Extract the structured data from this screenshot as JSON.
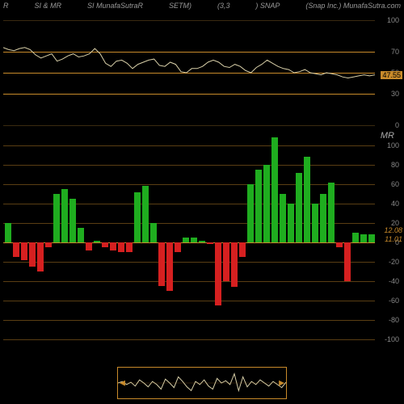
{
  "header": {
    "left1": "R",
    "left2": "SI & MR",
    "left3": "SI MunafaSutraR",
    "left4": "SETM)",
    "center": "(3,3",
    "symbol": ") SNAP",
    "right": "(Snap Inc.) MunafaSutra.com"
  },
  "upper_chart": {
    "ylim": [
      0,
      100
    ],
    "gridlines": [
      0,
      30,
      50,
      70,
      100
    ],
    "grid_colors": {
      "major": "#c88a2a",
      "minor": "#3a2a10"
    },
    "current_value": 47.55,
    "line_color": "#d8cfa8",
    "line_width": 1,
    "points": [
      74,
      72,
      71,
      73,
      74,
      72,
      67,
      64,
      66,
      68,
      61,
      63,
      66,
      68,
      65,
      66,
      68,
      73,
      68,
      59,
      56,
      61,
      62,
      59,
      54,
      58,
      60,
      62,
      63,
      57,
      56,
      60,
      58,
      51,
      50,
      54,
      54,
      56,
      60,
      62,
      60,
      56,
      55,
      58,
      56,
      52,
      50,
      55,
      58,
      62,
      59,
      56,
      54,
      53,
      50,
      51,
      53,
      50,
      49,
      48,
      50,
      49,
      48,
      46,
      45,
      46,
      47,
      48,
      47,
      48
    ]
  },
  "lower_chart": {
    "title": "MR",
    "ylim": [
      -100,
      100
    ],
    "gridlines": [
      -100,
      -80,
      -60,
      -40,
      -20,
      0,
      20,
      40,
      60,
      80,
      100
    ],
    "zero_color": "#c88a2a",
    "annot1": 12.08,
    "annot2": 11.01,
    "pos_color": "#1fad1f",
    "neg_color": "#d62020",
    "bars": [
      20,
      -15,
      -18,
      -25,
      -30,
      -5,
      50,
      55,
      45,
      15,
      -8,
      2,
      -5,
      -8,
      -10,
      -10,
      52,
      58,
      20,
      -45,
      -50,
      -10,
      5,
      5,
      2,
      -2,
      -65,
      -40,
      -46,
      -15,
      60,
      75,
      80,
      108,
      50,
      40,
      72,
      88,
      40,
      50,
      62,
      -5,
      -40,
      10,
      8,
      8
    ]
  },
  "mini": {
    "points": [
      20,
      18,
      22,
      19,
      24,
      16,
      20,
      25,
      18,
      22,
      28,
      15,
      20,
      26,
      12,
      18,
      25,
      30,
      18,
      22,
      16,
      24,
      28,
      14,
      20,
      17,
      22,
      8,
      30,
      12,
      25,
      18,
      22,
      16,
      20,
      24,
      18,
      22,
      26,
      19
    ]
  }
}
